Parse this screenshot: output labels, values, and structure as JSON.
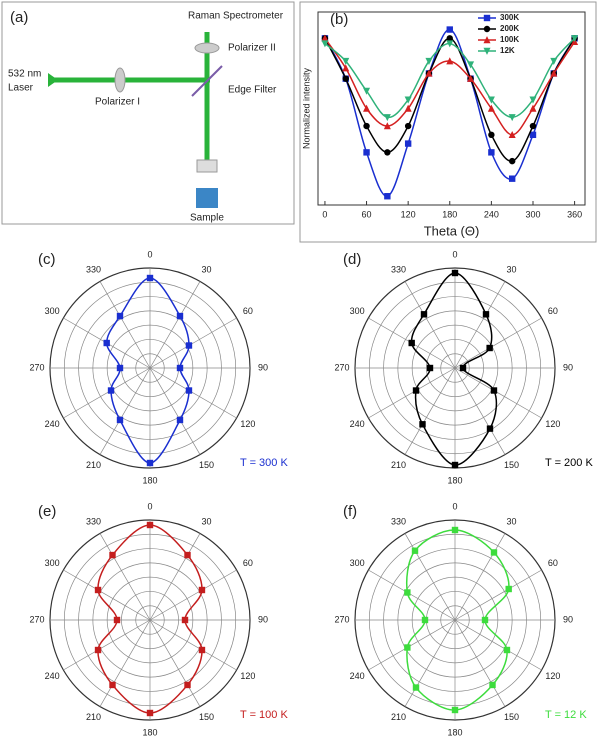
{
  "diagram": {
    "label": "(a)",
    "labels": [
      "532 nm",
      "Laser",
      "Polarizer I",
      "Raman Spectrometer",
      "Polarizer II",
      "Edge Filter",
      "Sample"
    ]
  },
  "chart_data": [
    {
      "type": "line",
      "label": "(b)",
      "x_label": "Theta (Θ)",
      "y_label": "Normalized intensity",
      "x": [
        0,
        30,
        60,
        90,
        120,
        150,
        180,
        210,
        240,
        270,
        300,
        330,
        360
      ],
      "xlim": [
        -10,
        375
      ],
      "xticks": [
        0,
        60,
        120,
        180,
        240,
        300,
        360
      ],
      "ylim": [
        0,
        1.1
      ],
      "legend": "upper center",
      "series": [
        {
          "name": "300K",
          "color": "#1a2fd0",
          "marker": "square",
          "values": [
            0.95,
            0.72,
            0.3,
            0.05,
            0.35,
            0.75,
            1.0,
            0.72,
            0.3,
            0.15,
            0.4,
            0.75,
            0.95
          ]
        },
        {
          "name": "200K",
          "color": "#000000",
          "marker": "circle",
          "values": [
            0.95,
            0.72,
            0.45,
            0.3,
            0.45,
            0.75,
            0.95,
            0.72,
            0.4,
            0.25,
            0.45,
            0.75,
            0.95
          ]
        },
        {
          "name": "100K",
          "color": "#d42020",
          "marker": "triangle-up",
          "values": [
            0.95,
            0.78,
            0.55,
            0.45,
            0.55,
            0.75,
            0.82,
            0.72,
            0.55,
            0.4,
            0.55,
            0.75,
            0.93
          ]
        },
        {
          "name": "12K",
          "color": "#2fb27a",
          "marker": "triangle-down",
          "values": [
            0.92,
            0.82,
            0.65,
            0.5,
            0.6,
            0.82,
            0.92,
            0.8,
            0.6,
            0.5,
            0.6,
            0.82,
            0.95
          ]
        }
      ]
    },
    {
      "type": "polar",
      "label": "(c)",
      "annotation": "T = 300 K",
      "color": "#1a2fd0",
      "rlim": [
        0,
        1
      ],
      "theta": [
        0,
        30,
        60,
        90,
        120,
        150,
        180,
        210,
        240,
        270,
        300,
        330
      ],
      "thetaticks": [
        0,
        30,
        60,
        90,
        120,
        150,
        180,
        210,
        240,
        270,
        300,
        330
      ],
      "values": [
        0.9,
        0.6,
        0.45,
        0.3,
        0.45,
        0.6,
        0.95,
        0.6,
        0.45,
        0.3,
        0.5,
        0.6
      ]
    },
    {
      "type": "polar",
      "label": "(d)",
      "annotation": "T = 200 K",
      "color": "#000000",
      "rlim": [
        0,
        1
      ],
      "theta": [
        0,
        30,
        60,
        90,
        120,
        150,
        180,
        210,
        240,
        270,
        300,
        330
      ],
      "thetaticks": [
        0,
        30,
        60,
        90,
        120,
        150,
        180,
        210,
        240,
        270,
        300,
        330
      ],
      "values": [
        0.95,
        0.62,
        0.4,
        0.08,
        0.45,
        0.7,
        0.97,
        0.65,
        0.45,
        0.25,
        0.5,
        0.62
      ]
    },
    {
      "type": "polar",
      "label": "(e)",
      "annotation": "T = 100 K",
      "color": "#c41e1e",
      "rlim": [
        0,
        1
      ],
      "theta": [
        0,
        30,
        60,
        90,
        120,
        150,
        180,
        210,
        240,
        270,
        300,
        330
      ],
      "thetaticks": [
        0,
        30,
        60,
        90,
        120,
        150,
        180,
        210,
        240,
        270,
        300,
        330
      ],
      "values": [
        0.95,
        0.75,
        0.6,
        0.35,
        0.6,
        0.75,
        0.93,
        0.75,
        0.6,
        0.33,
        0.6,
        0.75
      ]
    },
    {
      "type": "polar",
      "label": "(f)",
      "annotation": "T = 12 K",
      "color": "#3ddc3d",
      "rlim": [
        0,
        1
      ],
      "theta": [
        0,
        30,
        60,
        90,
        120,
        150,
        180,
        210,
        240,
        270,
        300,
        330
      ],
      "thetaticks": [
        0,
        30,
        60,
        90,
        120,
        150,
        180,
        210,
        240,
        270,
        300,
        330
      ],
      "values": [
        0.9,
        0.78,
        0.62,
        0.3,
        0.6,
        0.75,
        0.9,
        0.78,
        0.55,
        0.3,
        0.55,
        0.8
      ]
    }
  ]
}
